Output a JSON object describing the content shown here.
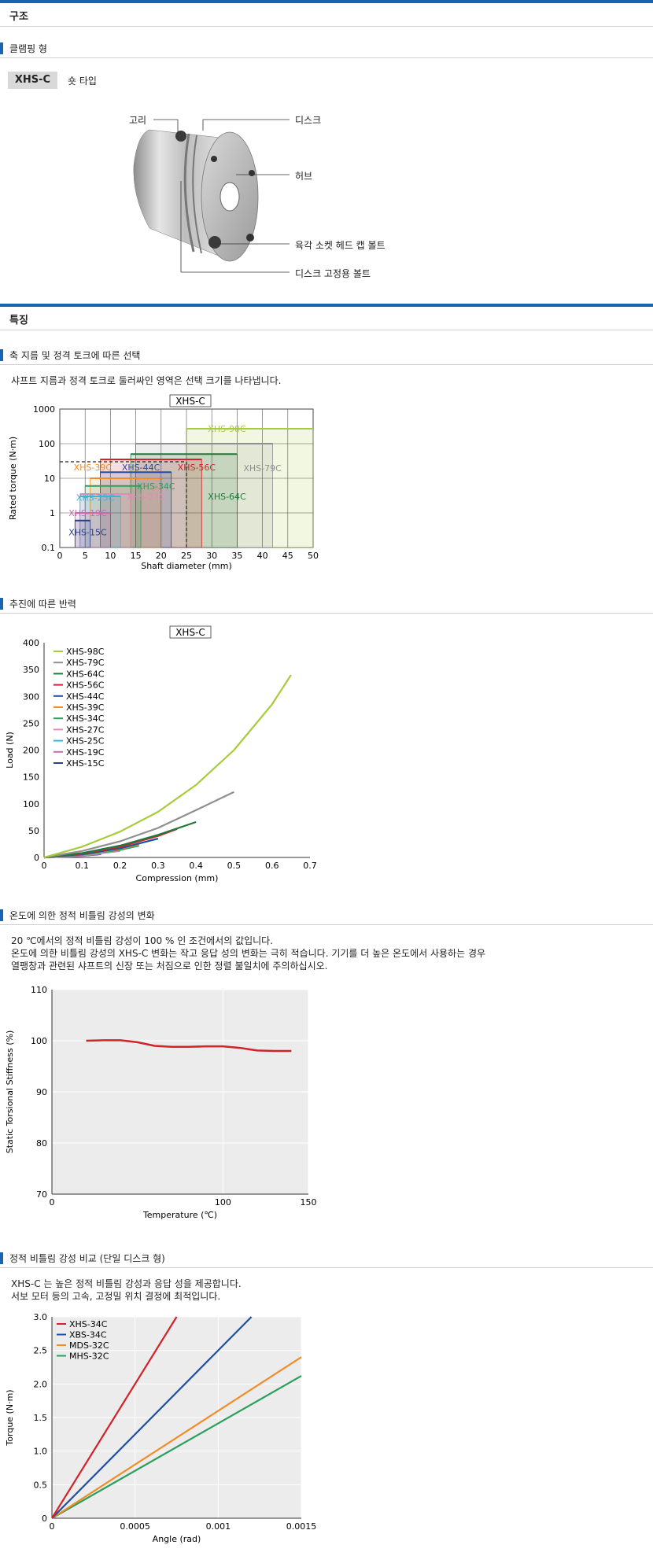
{
  "sections": {
    "structure": "구조",
    "features": "특징"
  },
  "clamping": {
    "subtitle": "클램핑 형",
    "model_badge": "XHS-C",
    "model_type": "숏 타입",
    "labels": {
      "ring": "고리",
      "disc": "디스크",
      "hub": "허브",
      "hex_bolt": "육각 소켓 헤드 캡 볼트",
      "disc_bolt": "디스크 고정용 볼트"
    }
  },
  "selection": {
    "subtitle": "축 지름 및 정격 토크에 따른 선택",
    "desc": "샤프트 지름과 정격 토크로 둘러싸인 영역은 선택 크기를 나타냅니다."
  },
  "reaction": {
    "subtitle": "추진에 따른 반력"
  },
  "temperature": {
    "subtitle": "온도에 의한 정적 비틀림 강성의 변화",
    "desc_lines": [
      "20 ℃에서의 정적 비틀림 강성이 100 % 인 조건에서의 값입니다.",
      "온도에 의한 비틀림 강성의 XHS-C 변화는 작고 응답 성의 변화는 극히 적습니다. 기기를 더 높은 온도에서 사용하는 경우",
      "열팽창과 관련된 샤프트의 신장 또는 처짐으로 인한 정렬 불일치에 주의하십시오."
    ]
  },
  "stiffness": {
    "subtitle": "정적 비틀림 강성 비교 (단일 디스크 형)",
    "desc_lines": [
      "XHS-C 는 높은 정적 비틀림 강성과 응답 성을 제공합니다.",
      "서보 모터 등의 고속, 고정밀 위치 결정에 최적입니다."
    ]
  },
  "chart_data": [
    {
      "type": "area",
      "title": "XHS-C",
      "xlabel": "Shaft diameter (mm)",
      "ylabel": "Rated torque (N·m)",
      "xlim": [
        0,
        50
      ],
      "ylim": [
        0.1,
        1000
      ],
      "yscale": "log",
      "x_ticks": [
        "0",
        "5",
        "10",
        "15",
        "20",
        "25",
        "30",
        "35",
        "40",
        "45",
        "50"
      ],
      "y_ticks": [
        "0.1",
        "1",
        "10",
        "100",
        "1000"
      ],
      "grid": true,
      "series": [
        {
          "name": "XHS-98C",
          "color": "#a6cc3a",
          "d_min": 25,
          "d_max": 50,
          "torque": 270
        },
        {
          "name": "XHS-79C",
          "color": "#8f8f8f",
          "d_min": 15,
          "d_max": 42,
          "torque": 100
        },
        {
          "name": "XHS-64C",
          "color": "#1f7a3a",
          "d_min": 14,
          "d_max": 35,
          "torque": 50
        },
        {
          "name": "XHS-56C",
          "color": "#d2232a",
          "d_min": 8,
          "d_max": 28,
          "torque": 35
        },
        {
          "name": "XHS-44C",
          "color": "#1f4fa0",
          "d_min": 8,
          "d_max": 22,
          "torque": 15
        },
        {
          "name": "XHS-39C",
          "color": "#f28c28",
          "d_min": 6,
          "d_max": 20,
          "torque": 10
        },
        {
          "name": "XHS-34C",
          "color": "#2aa05a",
          "d_min": 5,
          "d_max": 16,
          "torque": 6
        },
        {
          "name": "XHS-27C",
          "color": "#e887b5",
          "d_min": 4,
          "d_max": 14,
          "torque": 3.5
        },
        {
          "name": "XHS-25C",
          "color": "#38b6d8",
          "d_min": 4,
          "d_max": 12,
          "torque": 3
        },
        {
          "name": "XHS-19C",
          "color": "#c96ab0",
          "d_min": 3,
          "d_max": 10,
          "torque": 1
        },
        {
          "name": "XHS-15C",
          "color": "#2d3f8c",
          "d_min": 3,
          "d_max": 6,
          "torque": 0.6
        }
      ],
      "marker": {
        "x": 25,
        "y": 30,
        "style": "dashed"
      }
    },
    {
      "type": "line",
      "title": "XHS-C",
      "xlabel": "Compression (mm)",
      "ylabel": "Load (N)",
      "xlim": [
        0,
        0.7
      ],
      "ylim": [
        0,
        400
      ],
      "x_ticks": [
        "0",
        "0.1",
        "0.2",
        "0.3",
        "0.4",
        "0.5",
        "0.6",
        "0.7"
      ],
      "y_ticks": [
        "0",
        "50",
        "100",
        "150",
        "200",
        "250",
        "300",
        "350",
        "400"
      ],
      "legend": "top-left",
      "series": [
        {
          "name": "XHS-98C",
          "color": "#a6cc3a",
          "x": [
            0,
            0.1,
            0.2,
            0.3,
            0.4,
            0.5,
            0.6,
            0.65
          ],
          "y": [
            0,
            20,
            48,
            85,
            135,
            200,
            285,
            340
          ]
        },
        {
          "name": "XHS-79C",
          "color": "#8f8f8f",
          "x": [
            0,
            0.1,
            0.2,
            0.3,
            0.4,
            0.5
          ],
          "y": [
            0,
            12,
            30,
            55,
            88,
            122
          ]
        },
        {
          "name": "XHS-64C",
          "color": "#1f7a3a",
          "x": [
            0,
            0.1,
            0.2,
            0.3,
            0.4
          ],
          "y": [
            0,
            8,
            22,
            42,
            66
          ]
        },
        {
          "name": "XHS-56C",
          "color": "#d2232a",
          "x": [
            0,
            0.1,
            0.2,
            0.3,
            0.35
          ],
          "y": [
            0,
            7,
            20,
            40,
            53
          ]
        },
        {
          "name": "XHS-44C",
          "color": "#1f4fa0",
          "x": [
            0,
            0.1,
            0.2,
            0.3
          ],
          "y": [
            0,
            6,
            17,
            35
          ]
        },
        {
          "name": "XHS-39C",
          "color": "#f28c28",
          "x": [
            0,
            0.1,
            0.2,
            0.25
          ],
          "y": [
            0,
            6,
            16,
            24
          ]
        },
        {
          "name": "XHS-34C",
          "color": "#2aa05a",
          "x": [
            0,
            0.1,
            0.2,
            0.25
          ],
          "y": [
            0,
            5,
            14,
            22
          ]
        },
        {
          "name": "XHS-27C",
          "color": "#e887b5",
          "x": [
            0,
            0.1,
            0.2
          ],
          "y": [
            0,
            4,
            13
          ]
        },
        {
          "name": "XHS-25C",
          "color": "#38b6d8",
          "x": [
            0,
            0.1,
            0.2
          ],
          "y": [
            0,
            4,
            12
          ]
        },
        {
          "name": "XHS-19C",
          "color": "#c96ab0",
          "x": [
            0,
            0.1,
            0.15
          ],
          "y": [
            0,
            3,
            7
          ]
        },
        {
          "name": "XHS-15C",
          "color": "#2d3f8c",
          "x": [
            0,
            0.1,
            0.15
          ],
          "y": [
            0,
            3,
            6
          ]
        }
      ]
    },
    {
      "type": "line",
      "title": "",
      "xlabel": "Temperature (℃)",
      "ylabel": "Static Torsional Stiffness (%)",
      "xlim": [
        0,
        150
      ],
      "ylim": [
        70,
        110
      ],
      "x_ticks": [
        "0",
        "100",
        "150"
      ],
      "y_ticks": [
        "70",
        "80",
        "90",
        "100",
        "110"
      ],
      "series": [
        {
          "color": "#d2232a",
          "x": [
            20,
            30,
            40,
            50,
            60,
            70,
            80,
            90,
            100,
            110,
            120,
            130,
            140
          ],
          "y": [
            100,
            100.1,
            100.1,
            99.7,
            99.0,
            98.8,
            98.8,
            98.9,
            98.9,
            98.6,
            98.1,
            98.0,
            98.0
          ]
        }
      ]
    },
    {
      "type": "line",
      "title": "",
      "xlabel": "Angle (rad)",
      "ylabel": "Torque (N·m)",
      "xlim": [
        0,
        0.0015
      ],
      "ylim": [
        0,
        3.0
      ],
      "x_ticks": [
        "0",
        "0.0005",
        "0.001",
        "0.0015"
      ],
      "y_ticks": [
        "0",
        "0.5",
        "1.0",
        "1.5",
        "2.0",
        "2.5",
        "3.0"
      ],
      "legend": "top-left",
      "series": [
        {
          "name": "XHS-34C",
          "color": "#d2232a",
          "x": [
            0,
            0.00075
          ],
          "y": [
            0,
            3.0
          ]
        },
        {
          "name": "XBS-34C",
          "color": "#1f4fa0",
          "x": [
            0,
            0.0012
          ],
          "y": [
            0,
            3.0
          ]
        },
        {
          "name": "MDS-32C",
          "color": "#f28c28",
          "x": [
            0,
            0.0015
          ],
          "y": [
            0,
            2.4
          ]
        },
        {
          "name": "MHS-32C",
          "color": "#2aa05a",
          "x": [
            0,
            0.0015
          ],
          "y": [
            0,
            2.12
          ]
        }
      ]
    }
  ]
}
